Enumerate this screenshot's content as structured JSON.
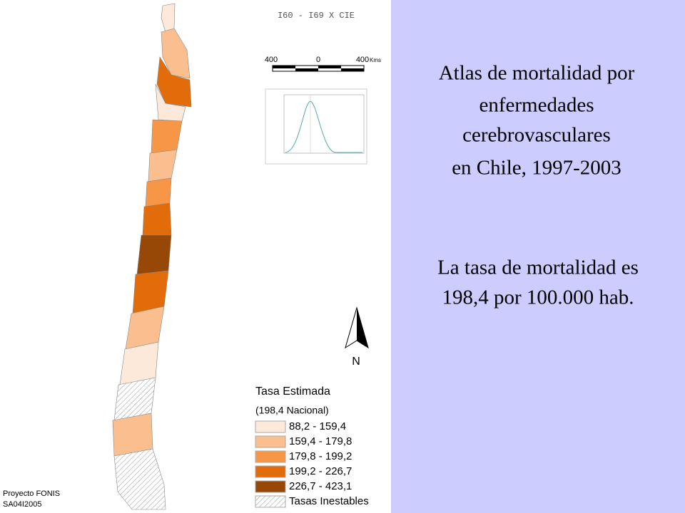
{
  "header": {
    "code": "I60 - I69 X CIE"
  },
  "scale_bar": {
    "labels": [
      "400",
      "0",
      "400"
    ],
    "unit": "Kms"
  },
  "north": "N",
  "legend": {
    "title": "Tasa Estimada",
    "subtitle": "(198,4 Nacional)",
    "items": [
      {
        "label": "88,2 - 159,4",
        "color": "#fde9d9"
      },
      {
        "label": "159,4 - 179,8",
        "color": "#fbbf8f"
      },
      {
        "label": "179,8 - 199,2",
        "color": "#f79646"
      },
      {
        "label": "199,2 - 226,7",
        "color": "#e26b0a"
      },
      {
        "label": "226,7 - 423,1",
        "color": "#974706"
      },
      {
        "label": "Tasas Inestables"
      }
    ]
  },
  "credits": [
    "Proyecto FONIS",
    "SA04I2005"
  ],
  "title_lines": [
    "Atlas de mortalidad por",
    "enfermedades",
    "cerebrovasculares",
    "en Chile, 1997-2003"
  ],
  "note_lines": [
    "La tasa de mortalidad es",
    "198,4 por 100.000 hab."
  ]
}
